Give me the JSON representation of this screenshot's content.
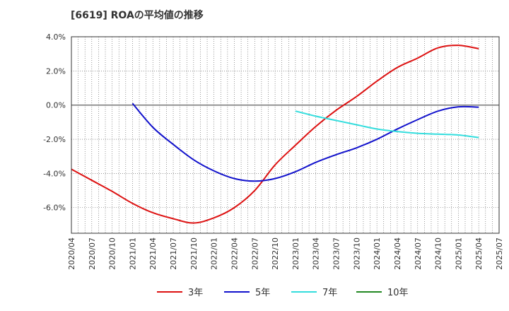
{
  "chart_data": {
    "type": "line",
    "title": "[6619]  ROAの平均値の推移",
    "xlabel": "",
    "ylabel": "",
    "ylim": [
      -7.5,
      4.0
    ],
    "yticks": [
      {
        "value": 4,
        "label": "4.0%"
      },
      {
        "value": 2,
        "label": "2.0%"
      },
      {
        "value": 0,
        "label": "0.0%"
      },
      {
        "value": -2,
        "label": "-2.0%"
      },
      {
        "value": -4,
        "label": "-4.0%"
      },
      {
        "value": -6,
        "label": "-6.0%"
      }
    ],
    "x_start": "2020/04",
    "x_end": "2025/07",
    "x_ticks": [
      "2020/04",
      "2020/07",
      "2020/10",
      "2021/01",
      "2021/04",
      "2021/07",
      "2021/10",
      "2022/01",
      "2022/04",
      "2022/07",
      "2022/10",
      "2023/01",
      "2023/04",
      "2023/07",
      "2023/10",
      "2024/01",
      "2024/04",
      "2024/07",
      "2024/10",
      "2025/01",
      "2025/04",
      "2025/07"
    ],
    "grid": true,
    "legend_position": "bottom",
    "series": [
      {
        "name": "3年",
        "color": "#dd1111",
        "points": [
          [
            "2020/04",
            -3.75
          ],
          [
            "2020/07",
            -4.4
          ],
          [
            "2020/10",
            -5.05
          ],
          [
            "2021/01",
            -5.75
          ],
          [
            "2021/04",
            -6.3
          ],
          [
            "2021/07",
            -6.65
          ],
          [
            "2021/10",
            -6.9
          ],
          [
            "2022/01",
            -6.6
          ],
          [
            "2022/04",
            -6.0
          ],
          [
            "2022/07",
            -5.0
          ],
          [
            "2022/10",
            -3.5
          ],
          [
            "2023/01",
            -2.35
          ],
          [
            "2023/04",
            -1.25
          ],
          [
            "2023/07",
            -0.3
          ],
          [
            "2023/10",
            0.5
          ],
          [
            "2024/01",
            1.4
          ],
          [
            "2024/04",
            2.2
          ],
          [
            "2024/07",
            2.75
          ],
          [
            "2024/10",
            3.35
          ],
          [
            "2025/01",
            3.5
          ],
          [
            "2025/04",
            3.3
          ]
        ]
      },
      {
        "name": "5年",
        "color": "#1111cc",
        "points": [
          [
            "2021/01",
            0.1
          ],
          [
            "2021/04",
            -1.3
          ],
          [
            "2021/07",
            -2.3
          ],
          [
            "2021/10",
            -3.2
          ],
          [
            "2022/01",
            -3.85
          ],
          [
            "2022/04",
            -4.3
          ],
          [
            "2022/07",
            -4.45
          ],
          [
            "2022/10",
            -4.3
          ],
          [
            "2023/01",
            -3.9
          ],
          [
            "2023/04",
            -3.35
          ],
          [
            "2023/07",
            -2.9
          ],
          [
            "2023/10",
            -2.5
          ],
          [
            "2024/01",
            -2.0
          ],
          [
            "2024/04",
            -1.4
          ],
          [
            "2024/07",
            -0.85
          ],
          [
            "2024/10",
            -0.35
          ],
          [
            "2025/01",
            -0.1
          ],
          [
            "2025/04",
            -0.12
          ]
        ]
      },
      {
        "name": "7年",
        "color": "#33dddd",
        "points": [
          [
            "2023/01",
            -0.35
          ],
          [
            "2023/04",
            -0.65
          ],
          [
            "2023/07",
            -0.9
          ],
          [
            "2023/10",
            -1.15
          ],
          [
            "2024/01",
            -1.4
          ],
          [
            "2024/04",
            -1.55
          ],
          [
            "2024/07",
            -1.65
          ],
          [
            "2024/10",
            -1.7
          ],
          [
            "2025/01",
            -1.75
          ],
          [
            "2025/04",
            -1.9
          ]
        ]
      },
      {
        "name": "10年",
        "color": "#228822",
        "points": []
      }
    ]
  }
}
